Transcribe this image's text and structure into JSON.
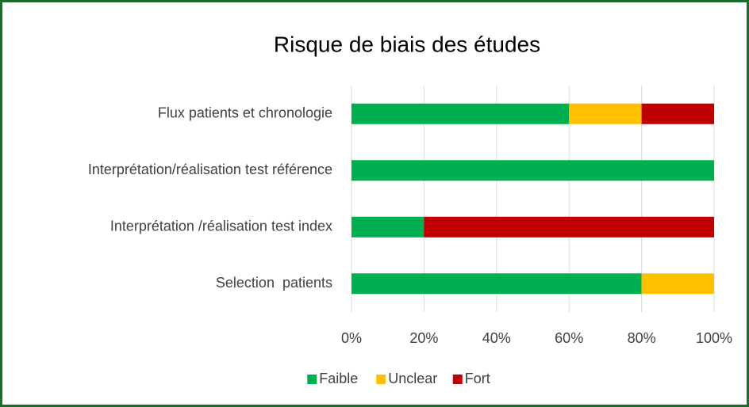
{
  "chart_data": {
    "type": "stacked_bar_horizontal",
    "title": "Risque de biais des études",
    "categories": [
      "Flux patients et chronologie",
      "Interprétation/réalisation test référence",
      "Interprétation /réalisation test index",
      "Selection  patients"
    ],
    "series": [
      {
        "name": "Faible",
        "color": "#00b050",
        "values": [
          60,
          100,
          20,
          80
        ]
      },
      {
        "name": "Unclear",
        "color": "#ffc000",
        "values": [
          20,
          0,
          0,
          20
        ]
      },
      {
        "name": "Fort",
        "color": "#c00000",
        "values": [
          20,
          0,
          80,
          0
        ]
      }
    ],
    "xlim": [
      0,
      100
    ],
    "xticks": [
      {
        "value": 0,
        "label": "0%"
      },
      {
        "value": 20,
        "label": "20%"
      },
      {
        "value": 40,
        "label": "40%"
      },
      {
        "value": 60,
        "label": "60%"
      },
      {
        "value": 80,
        "label": "80%"
      },
      {
        "value": 100,
        "label": "100%"
      }
    ],
    "grid": true
  }
}
